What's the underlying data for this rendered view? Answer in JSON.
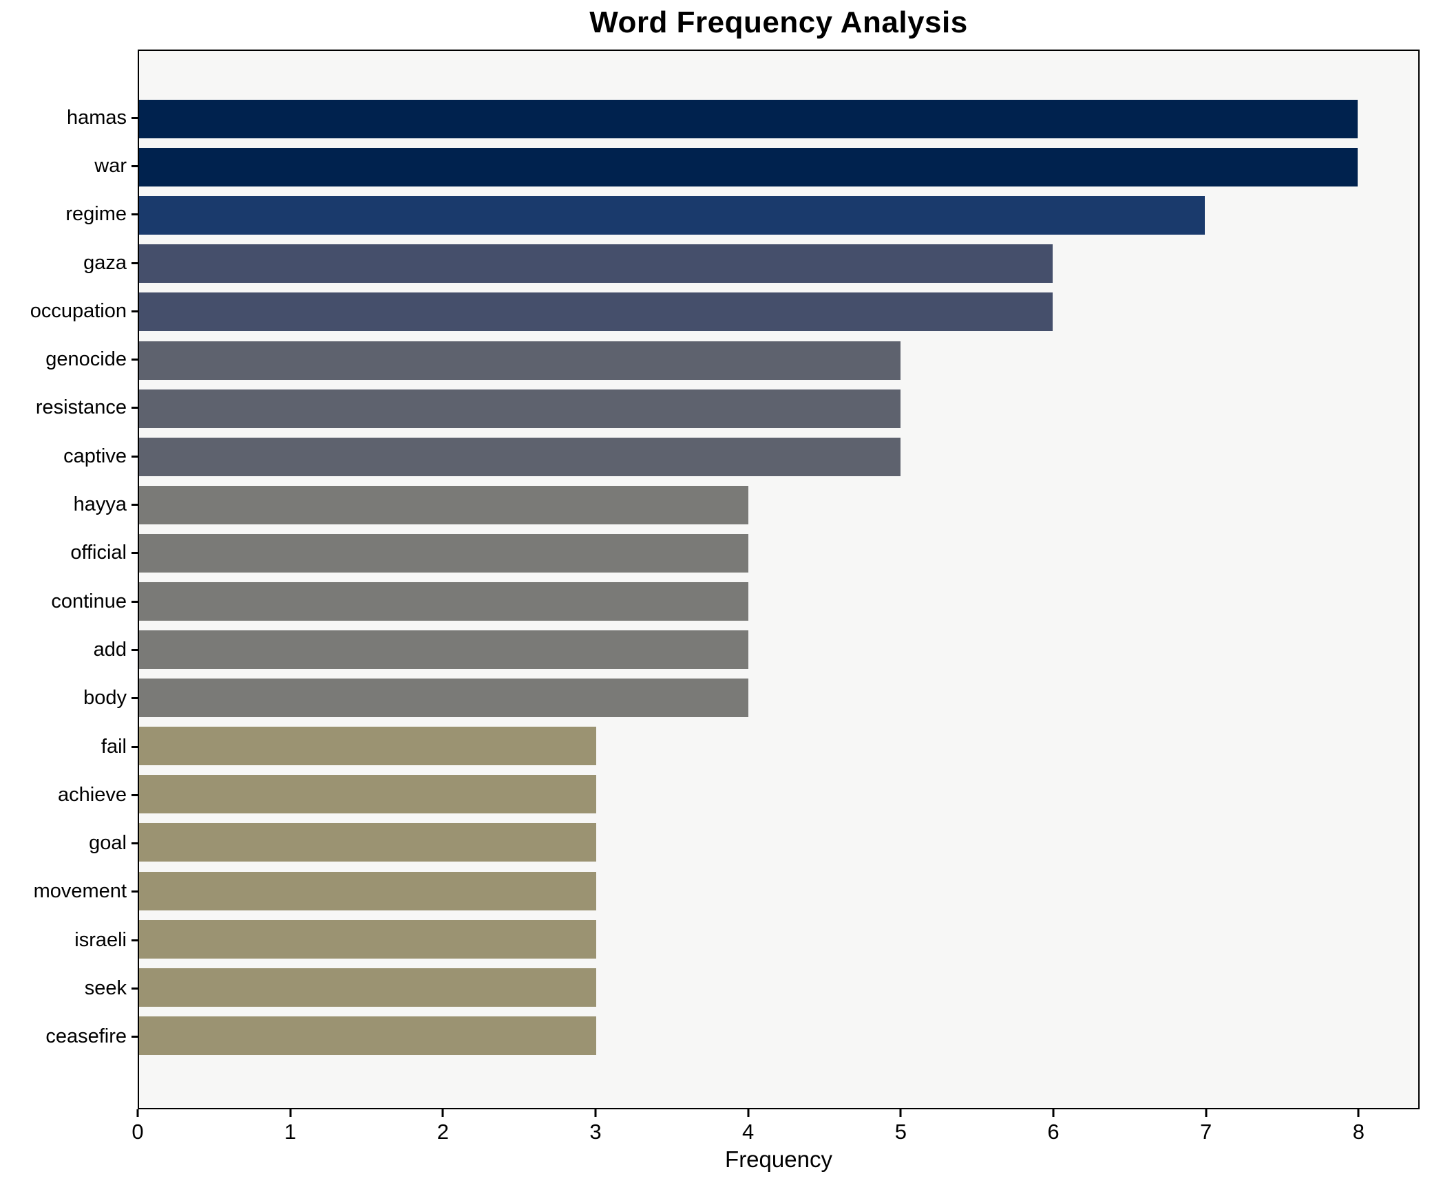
{
  "chart_data": {
    "type": "bar",
    "orientation": "horizontal",
    "title": "Word Frequency Analysis",
    "xlabel": "Frequency",
    "ylabel": "",
    "categories": [
      "hamas",
      "war",
      "regime",
      "gaza",
      "occupation",
      "genocide",
      "resistance",
      "captive",
      "hayya",
      "official",
      "continue",
      "add",
      "body",
      "fail",
      "achieve",
      "goal",
      "movement",
      "israeli",
      "seek",
      "ceasefire"
    ],
    "values": [
      8,
      8,
      7,
      6,
      6,
      5,
      5,
      5,
      4,
      4,
      4,
      4,
      4,
      3,
      3,
      3,
      3,
      3,
      3,
      3
    ],
    "bar_colors": [
      "#00224e",
      "#00224e",
      "#1a3a6c",
      "#454f6b",
      "#454f6b",
      "#5e626e",
      "#5e626e",
      "#5e626e",
      "#7a7a77",
      "#7a7a77",
      "#7a7a77",
      "#7a7a77",
      "#7a7a77",
      "#9b9372",
      "#9b9372",
      "#9b9372",
      "#9b9372",
      "#9b9372",
      "#9b9372",
      "#9b9372"
    ],
    "xlim": [
      0,
      8.4
    ],
    "x_ticks": [
      0,
      1,
      2,
      3,
      4,
      5,
      6,
      7,
      8
    ],
    "grid": false,
    "legend_position": "none",
    "plot_background": "#f7f7f6",
    "figure_background": "#ffffff",
    "spine_color": "#000000"
  }
}
